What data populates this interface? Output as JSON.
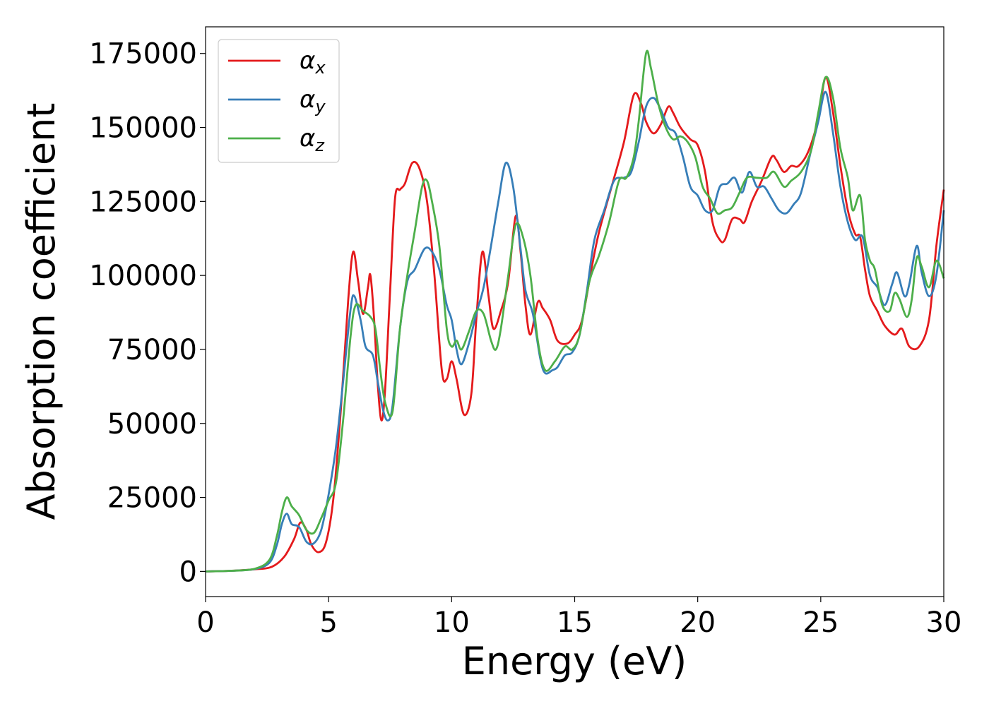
{
  "chart_data": {
    "type": "line",
    "title": "",
    "xlabel": "Energy (eV)",
    "ylabel": "Absorption coefficient",
    "xlim": [
      0,
      30
    ],
    "ylim": [
      -8500,
      184000
    ],
    "xticks": [
      0,
      5,
      10,
      15,
      20,
      25,
      30
    ],
    "yticks": [
      0,
      25000,
      50000,
      75000,
      100000,
      125000,
      150000,
      175000
    ],
    "grid": false,
    "legend_position": "top-left",
    "series": [
      {
        "name": "α",
        "subscript": "x",
        "color": "#e41a1c",
        "points": [
          [
            0,
            0
          ],
          [
            1,
            200
          ],
          [
            2,
            700
          ],
          [
            2.7,
            1600
          ],
          [
            3.2,
            5000
          ],
          [
            3.6,
            11000
          ],
          [
            3.85,
            16500
          ],
          [
            4.1,
            14000
          ],
          [
            4.3,
            9000
          ],
          [
            4.6,
            6500
          ],
          [
            4.9,
            10000
          ],
          [
            5.2,
            25000
          ],
          [
            5.5,
            55000
          ],
          [
            5.8,
            92000
          ],
          [
            6.0,
            108000
          ],
          [
            6.2,
            98000
          ],
          [
            6.4,
            87000
          ],
          [
            6.6,
            96000
          ],
          [
            6.7,
            100000
          ],
          [
            6.85,
            85000
          ],
          [
            7.0,
            63000
          ],
          [
            7.15,
            51000
          ],
          [
            7.3,
            62000
          ],
          [
            7.5,
            95000
          ],
          [
            7.7,
            126000
          ],
          [
            7.9,
            129000
          ],
          [
            8.1,
            131000
          ],
          [
            8.4,
            138000
          ],
          [
            8.7,
            136000
          ],
          [
            9.0,
            125000
          ],
          [
            9.3,
            100000
          ],
          [
            9.6,
            68000
          ],
          [
            9.8,
            65000
          ],
          [
            10.0,
            71000
          ],
          [
            10.2,
            65000
          ],
          [
            10.5,
            53000
          ],
          [
            10.8,
            60000
          ],
          [
            11.0,
            85000
          ],
          [
            11.25,
            108000
          ],
          [
            11.5,
            93000
          ],
          [
            11.7,
            82000
          ],
          [
            12.0,
            88000
          ],
          [
            12.3,
            98000
          ],
          [
            12.6,
            120000
          ],
          [
            12.8,
            108000
          ],
          [
            13.0,
            90000
          ],
          [
            13.2,
            80000
          ],
          [
            13.5,
            91000
          ],
          [
            13.7,
            89000
          ],
          [
            14.0,
            85000
          ],
          [
            14.3,
            78000
          ],
          [
            14.7,
            77000
          ],
          [
            15.0,
            80000
          ],
          [
            15.3,
            85000
          ],
          [
            15.7,
            103000
          ],
          [
            16.0,
            115000
          ],
          [
            16.5,
            130000
          ],
          [
            17.0,
            145000
          ],
          [
            17.4,
            161000
          ],
          [
            17.7,
            158000
          ],
          [
            17.9,
            152000
          ],
          [
            18.2,
            148000
          ],
          [
            18.5,
            151000
          ],
          [
            18.8,
            157000
          ],
          [
            19.0,
            155000
          ],
          [
            19.3,
            150000
          ],
          [
            19.7,
            146000
          ],
          [
            20.0,
            144000
          ],
          [
            20.3,
            135000
          ],
          [
            20.6,
            118000
          ],
          [
            20.9,
            112000
          ],
          [
            21.1,
            112000
          ],
          [
            21.4,
            119000
          ],
          [
            21.7,
            119000
          ],
          [
            21.9,
            118000
          ],
          [
            22.2,
            125000
          ],
          [
            22.6,
            132000
          ],
          [
            23.0,
            140000
          ],
          [
            23.2,
            139000
          ],
          [
            23.5,
            135000
          ],
          [
            23.8,
            137000
          ],
          [
            24.1,
            137000
          ],
          [
            24.5,
            142000
          ],
          [
            24.9,
            153000
          ],
          [
            25.2,
            167000
          ],
          [
            25.5,
            155000
          ],
          [
            25.8,
            137000
          ],
          [
            26.1,
            122000
          ],
          [
            26.4,
            114000
          ],
          [
            26.6,
            113000
          ],
          [
            26.8,
            102000
          ],
          [
            27.0,
            93000
          ],
          [
            27.3,
            88000
          ],
          [
            27.6,
            83000
          ],
          [
            28.0,
            80000
          ],
          [
            28.3,
            82000
          ],
          [
            28.6,
            76000
          ],
          [
            29.0,
            76000
          ],
          [
            29.4,
            85000
          ],
          [
            29.7,
            110000
          ],
          [
            30.0,
            129000
          ]
        ]
      },
      {
        "name": "α",
        "subscript": "y",
        "color": "#377eb8",
        "points": [
          [
            0,
            0
          ],
          [
            1,
            200
          ],
          [
            2,
            800
          ],
          [
            2.6,
            3000
          ],
          [
            2.9,
            9000
          ],
          [
            3.1,
            16000
          ],
          [
            3.3,
            19500
          ],
          [
            3.5,
            16000
          ],
          [
            3.8,
            15000
          ],
          [
            4.1,
            10000
          ],
          [
            4.4,
            9500
          ],
          [
            4.7,
            14000
          ],
          [
            5.0,
            26000
          ],
          [
            5.3,
            42000
          ],
          [
            5.6,
            65000
          ],
          [
            5.9,
            89000
          ],
          [
            6.05,
            93000
          ],
          [
            6.3,
            85000
          ],
          [
            6.5,
            76000
          ],
          [
            6.8,
            73000
          ],
          [
            7.0,
            64000
          ],
          [
            7.2,
            55000
          ],
          [
            7.4,
            51000
          ],
          [
            7.6,
            56000
          ],
          [
            7.9,
            82000
          ],
          [
            8.2,
            98000
          ],
          [
            8.5,
            102000
          ],
          [
            8.9,
            109000
          ],
          [
            9.2,
            108000
          ],
          [
            9.5,
            102000
          ],
          [
            9.8,
            90000
          ],
          [
            10.0,
            85000
          ],
          [
            10.2,
            75000
          ],
          [
            10.4,
            70000
          ],
          [
            10.7,
            77000
          ],
          [
            11.0,
            87000
          ],
          [
            11.3,
            96000
          ],
          [
            11.6,
            110000
          ],
          [
            11.9,
            125000
          ],
          [
            12.2,
            138000
          ],
          [
            12.5,
            130000
          ],
          [
            12.8,
            109000
          ],
          [
            13.0,
            95000
          ],
          [
            13.3,
            87000
          ],
          [
            13.6,
            72000
          ],
          [
            13.8,
            67000
          ],
          [
            14.1,
            68000
          ],
          [
            14.3,
            69000
          ],
          [
            14.6,
            73000
          ],
          [
            14.9,
            74000
          ],
          [
            15.2,
            80000
          ],
          [
            15.5,
            95000
          ],
          [
            15.8,
            112000
          ],
          [
            16.2,
            122000
          ],
          [
            16.6,
            132000
          ],
          [
            17.0,
            133000
          ],
          [
            17.3,
            135000
          ],
          [
            17.6,
            145000
          ],
          [
            17.9,
            157000
          ],
          [
            18.2,
            160000
          ],
          [
            18.5,
            156000
          ],
          [
            18.8,
            150000
          ],
          [
            19.1,
            148000
          ],
          [
            19.4,
            140000
          ],
          [
            19.7,
            130000
          ],
          [
            20.0,
            127000
          ],
          [
            20.3,
            122000
          ],
          [
            20.6,
            122000
          ],
          [
            20.9,
            130000
          ],
          [
            21.2,
            131000
          ],
          [
            21.5,
            133000
          ],
          [
            21.8,
            128000
          ],
          [
            22.1,
            135000
          ],
          [
            22.4,
            130000
          ],
          [
            22.7,
            130000
          ],
          [
            23.0,
            126000
          ],
          [
            23.3,
            122000
          ],
          [
            23.6,
            121000
          ],
          [
            23.9,
            124000
          ],
          [
            24.2,
            128000
          ],
          [
            24.6,
            142000
          ],
          [
            24.9,
            152000
          ],
          [
            25.2,
            162000
          ],
          [
            25.5,
            148000
          ],
          [
            25.8,
            130000
          ],
          [
            26.1,
            118000
          ],
          [
            26.4,
            112000
          ],
          [
            26.7,
            113000
          ],
          [
            27.0,
            100000
          ],
          [
            27.3,
            96000
          ],
          [
            27.6,
            90000
          ],
          [
            27.9,
            97000
          ],
          [
            28.1,
            101000
          ],
          [
            28.4,
            93000
          ],
          [
            28.6,
            97000
          ],
          [
            28.9,
            110000
          ],
          [
            29.1,
            101000
          ],
          [
            29.4,
            93000
          ],
          [
            29.7,
            100000
          ],
          [
            30.0,
            122000
          ]
        ]
      },
      {
        "name": "α",
        "subscript": "z",
        "color": "#4daf4a",
        "points": [
          [
            0,
            0
          ],
          [
            1,
            200
          ],
          [
            2,
            900
          ],
          [
            2.6,
            4000
          ],
          [
            2.9,
            12000
          ],
          [
            3.1,
            20000
          ],
          [
            3.3,
            25000
          ],
          [
            3.5,
            22000
          ],
          [
            3.8,
            19000
          ],
          [
            4.1,
            14000
          ],
          [
            4.4,
            13000
          ],
          [
            4.7,
            18000
          ],
          [
            5.0,
            24000
          ],
          [
            5.3,
            30000
          ],
          [
            5.6,
            52000
          ],
          [
            5.9,
            80000
          ],
          [
            6.1,
            90000
          ],
          [
            6.4,
            88000
          ],
          [
            6.7,
            86000
          ],
          [
            6.9,
            82000
          ],
          [
            7.1,
            68000
          ],
          [
            7.3,
            57000
          ],
          [
            7.6,
            54000
          ],
          [
            7.9,
            82000
          ],
          [
            8.2,
            100000
          ],
          [
            8.5,
            115000
          ],
          [
            8.8,
            130000
          ],
          [
            9.0,
            132000
          ],
          [
            9.2,
            125000
          ],
          [
            9.5,
            110000
          ],
          [
            9.8,
            82000
          ],
          [
            10.0,
            76000
          ],
          [
            10.2,
            78000
          ],
          [
            10.4,
            75000
          ],
          [
            10.7,
            81000
          ],
          [
            11.0,
            88000
          ],
          [
            11.3,
            87000
          ],
          [
            11.6,
            78000
          ],
          [
            11.8,
            75000
          ],
          [
            12.0,
            82000
          ],
          [
            12.3,
            100000
          ],
          [
            12.6,
            117000
          ],
          [
            12.9,
            113000
          ],
          [
            13.2,
            100000
          ],
          [
            13.5,
            78000
          ],
          [
            13.8,
            68000
          ],
          [
            14.2,
            71000
          ],
          [
            14.6,
            76000
          ],
          [
            14.9,
            75000
          ],
          [
            15.2,
            80000
          ],
          [
            15.6,
            98000
          ],
          [
            16.0,
            107000
          ],
          [
            16.4,
            118000
          ],
          [
            16.8,
            132000
          ],
          [
            17.1,
            133000
          ],
          [
            17.4,
            140000
          ],
          [
            17.6,
            152000
          ],
          [
            17.9,
            175000
          ],
          [
            18.1,
            170000
          ],
          [
            18.4,
            158000
          ],
          [
            18.7,
            150000
          ],
          [
            19.0,
            146000
          ],
          [
            19.3,
            147000
          ],
          [
            19.6,
            145000
          ],
          [
            19.9,
            140000
          ],
          [
            20.2,
            130000
          ],
          [
            20.5,
            126000
          ],
          [
            20.8,
            121000
          ],
          [
            21.1,
            122000
          ],
          [
            21.4,
            123000
          ],
          [
            21.7,
            128000
          ],
          [
            22.0,
            133000
          ],
          [
            22.4,
            133000
          ],
          [
            22.8,
            133000
          ],
          [
            23.1,
            135000
          ],
          [
            23.5,
            130000
          ],
          [
            23.8,
            132000
          ],
          [
            24.2,
            135000
          ],
          [
            24.6,
            142000
          ],
          [
            24.9,
            155000
          ],
          [
            25.2,
            167000
          ],
          [
            25.5,
            160000
          ],
          [
            25.8,
            143000
          ],
          [
            26.1,
            133000
          ],
          [
            26.3,
            122000
          ],
          [
            26.6,
            127000
          ],
          [
            26.8,
            112000
          ],
          [
            27.0,
            105000
          ],
          [
            27.2,
            102000
          ],
          [
            27.5,
            90000
          ],
          [
            27.8,
            88000
          ],
          [
            28.0,
            94000
          ],
          [
            28.2,
            92000
          ],
          [
            28.5,
            86000
          ],
          [
            28.7,
            92000
          ],
          [
            28.9,
            106000
          ],
          [
            29.1,
            103000
          ],
          [
            29.4,
            96000
          ],
          [
            29.7,
            105000
          ],
          [
            30.0,
            99000
          ]
        ]
      }
    ]
  }
}
